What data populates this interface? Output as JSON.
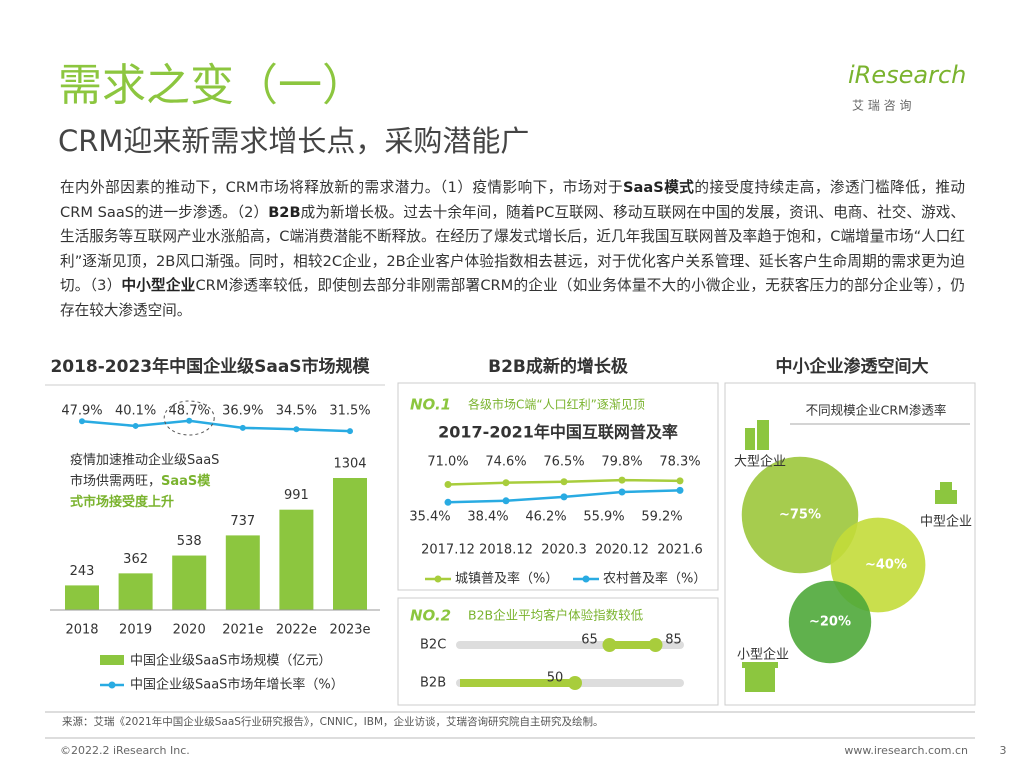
{
  "header": {
    "title": "需求之变（一）",
    "subtitle": "CRM迎来新需求增长点，采购潜能广",
    "logo": "iResearch",
    "logo_cn": "艾 瑞 咨 询"
  },
  "body": [
    {
      "text": "在内外部因素的推动下，CRM市场将释放新的需求潜力。（1）疫情影响下，市场对于",
      "bold": false
    },
    {
      "text": "SaaS模式",
      "bold": true
    },
    {
      "text": "的接受度持续走高，渗透门槛降低，推动CRM SaaS的进一步渗透。（2）",
      "bold": false
    },
    {
      "text": "B2B",
      "bold": true
    },
    {
      "text": "成为新增长极。过去十余年间，随着PC互联网、移动互联网在中国的发展，资讯、电商、社交、游戏、生活服务等互联网产业水涨船高，C端消费潜能不断释放。在经历了爆发式增长后，近几年我国互联网普及率趋于饱和，C端增量市场“人口红利”逐渐见顶，2B风口渐强。同时，相较2C企业，2B企业客户体验指数相去甚远，对于优化客户关系管理、延长客户生命周期的需求更为迫切。（3）",
      "bold": false
    },
    {
      "text": "中小型企业",
      "bold": true
    },
    {
      "text": "CRM渗透率较低，即使刨去部分非刚需部署CRM的企业（如业务体量不大的小微企业，无获客压力的部分企业等），仍存在较大渗透空间。",
      "bold": false
    }
  ],
  "panel_title": "B2B成新的增长极",
  "chart_data": [
    {
      "type": "bar_line",
      "title": "2018-2023年中国企业级SaaS市场规模",
      "categories": [
        "2018",
        "2019",
        "2020",
        "2021e",
        "2022e",
        "2023e"
      ],
      "series": [
        {
          "name": "中国企业级SaaS市场规模（亿元）",
          "color": "#8cc63f",
          "values": [
            243,
            362,
            538,
            737,
            991,
            1304
          ]
        },
        {
          "name": "中国企业级SaaS市场年增长率（%）",
          "color": "#29abe2",
          "values": [
            47.9,
            40.1,
            48.7,
            36.9,
            34.5,
            31.5
          ],
          "value_labels": [
            "47.9%",
            "40.1%",
            "48.7%",
            "36.9%",
            "34.5%",
            "31.5%"
          ]
        }
      ],
      "annotation": [
        {
          "text": "疫情加速推动企业级SaaS市场供需两旺，",
          "bold": false
        },
        {
          "text": "SaaS模式市场接受度上升",
          "bold": true
        }
      ]
    },
    {
      "type": "line",
      "tag": "NO.1",
      "subtitle": "各级市场C端“人口红利”逐渐见顶",
      "title": "2017-2021年中国互联网普及率",
      "categories": [
        "2017.12",
        "2018.12",
        "2020.3",
        "2020.12",
        "2021.6"
      ],
      "series": [
        {
          "name": "城镇普及率（%）",
          "color": "#a8cd3c",
          "values": [
            71.0,
            74.6,
            76.5,
            79.8,
            78.3
          ],
          "value_labels": [
            "71.0%",
            "74.6%",
            "76.5%",
            "79.8%",
            "78.3%"
          ]
        },
        {
          "name": "农村普及率（%）",
          "color": "#29abe2",
          "values": [
            35.4,
            38.4,
            46.2,
            55.9,
            59.2
          ],
          "value_labels": [
            "35.4%",
            "38.4%",
            "46.2%",
            "55.9%",
            "59.2%"
          ]
        }
      ]
    },
    {
      "type": "dot_range",
      "tag": "NO.2",
      "title": "B2B企业平均客户体验指数较低",
      "categories": [
        "B2C",
        "B2B"
      ],
      "values": [
        [
          65,
          85
        ],
        [
          50
        ]
      ],
      "color": "#a8cd3c"
    },
    {
      "type": "venn",
      "title": "中小企业渗透空间大",
      "subtitle": "不同规模企业CRM渗透率",
      "categories": [
        "大型企业",
        "中型企业",
        "小型企业"
      ],
      "values": [
        75,
        40,
        20
      ],
      "value_labels": [
        "~75%",
        "~40%",
        "~20%"
      ],
      "colors": [
        "#9cc63b",
        "#c3dc3a",
        "#4fa83a"
      ]
    }
  ],
  "footer": {
    "source": "来源：艾瑞《2021年中国企业级SaaS行业研究报告》，CNNIC，IBM，企业访谈，艾瑞咨询研究院自主研究及绘制。",
    "copyright": "©2022.2 iResearch Inc.",
    "website": "www.iresearch.com.cn",
    "page": "3"
  }
}
